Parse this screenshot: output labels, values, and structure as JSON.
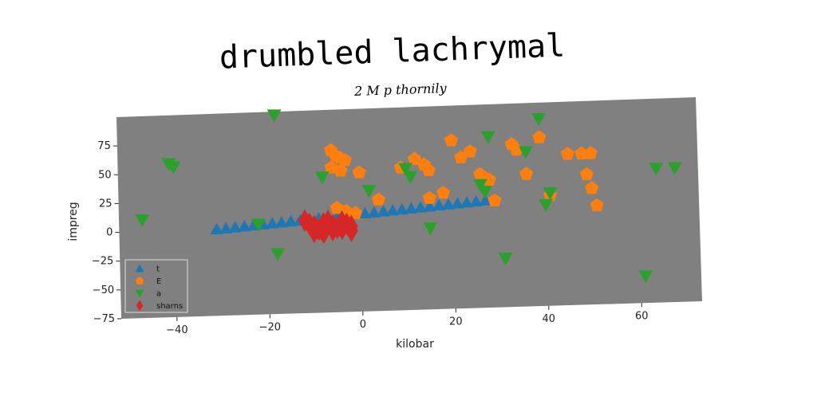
{
  "chart_data": {
    "type": "scatter",
    "title": "drumbled lachrymal",
    "subtitle": "2 M p thornily",
    "xlabel": "kilobar",
    "ylabel": "impreg",
    "xlim": [
      -52,
      73
    ],
    "ylim": [
      -75,
      100
    ],
    "xticks": [
      -40,
      -20,
      0,
      20,
      40,
      60
    ],
    "yticks": [
      -75,
      -50,
      -25,
      0,
      25,
      50,
      75
    ],
    "xtick_labels": [
      "−40",
      "−20",
      "0",
      "20",
      "40",
      "60"
    ],
    "ytick_labels": [
      "−75",
      "−50",
      "−25",
      "0",
      "25",
      "50",
      "75"
    ],
    "grid": false,
    "legend_position": "lower-left",
    "background": "#808080",
    "series": [
      {
        "name": "t",
        "marker": "triangle-up",
        "color": "#1f77b4",
        "x": [
          -31,
          -29,
          -27,
          -25,
          -23,
          -21,
          -19,
          -17,
          -15,
          -13,
          -11,
          -9,
          -7,
          -5,
          -3,
          1,
          3,
          5,
          7,
          9,
          11,
          13,
          15,
          17,
          19,
          21,
          23,
          25,
          27
        ],
        "y": [
          0,
          0.6,
          1.2,
          1.8,
          2.4,
          3,
          3.6,
          4.2,
          4.8,
          5.4,
          6,
          6.6,
          7.2,
          7.8,
          8.4,
          9.6,
          10.2,
          10.8,
          11.4,
          12,
          12.6,
          13.2,
          13.8,
          14.4,
          15,
          15.6,
          16.2,
          16.8,
          17.4
        ]
      },
      {
        "name": "E",
        "marker": "pentagon",
        "color": "#ff7f0e",
        "x": [
          -6,
          -5,
          -4,
          -3,
          -6,
          -4,
          0,
          4,
          9,
          12,
          14,
          15,
          18,
          15,
          20,
          22,
          24,
          26,
          27,
          28,
          33,
          34,
          36,
          39,
          41,
          45,
          48,
          50,
          49,
          51,
          50,
          29,
          -5,
          -3,
          -1
        ],
        "y": [
          65,
          60,
          58,
          56,
          50,
          47,
          45,
          21,
          48,
          55,
          50,
          45,
          25,
          21,
          70,
          55,
          60,
          40,
          37,
          35,
          65,
          60,
          39,
          70,
          20,
          55,
          55,
          55,
          37,
          10,
          25,
          17,
          15,
          12,
          10
        ]
      },
      {
        "name": "a",
        "marker": "triangle-down",
        "color": "#2ca02c",
        "x": [
          -18,
          -41,
          -40,
          -47,
          -22,
          -18,
          -8,
          2,
          10,
          11,
          15,
          26,
          27,
          28,
          31,
          36,
          39,
          40,
          41,
          61,
          64,
          68
        ],
        "y": [
          97,
          58,
          55,
          10,
          3,
          -23,
          42,
          29,
          47,
          40,
          -5,
          31,
          25,
          72,
          -33,
          58,
          86,
          12,
          22,
          -52,
          40,
          40
        ]
      },
      {
        "name": "sharns",
        "marker": "thin-diamond",
        "color": "#d62728",
        "x": [
          -12,
          -11,
          -10,
          -9,
          -8,
          -7,
          -6,
          -5,
          -4,
          -3,
          -2,
          -10,
          -8,
          -6,
          -4,
          -2
        ],
        "y": [
          5,
          2,
          0,
          -3,
          2,
          4,
          0,
          -2,
          3,
          1,
          -1,
          -5,
          -6,
          -4,
          -3,
          -5
        ]
      }
    ]
  }
}
